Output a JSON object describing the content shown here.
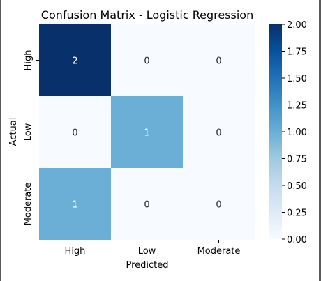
{
  "chart_data": {
    "type": "heatmap",
    "title": "Confusion Matrix - Logistic Regression",
    "xlabel": "Predicted",
    "ylabel": "Actual",
    "x_categories": [
      "High",
      "Low",
      "Moderate"
    ],
    "y_categories": [
      "High",
      "Low",
      "Moderate"
    ],
    "values": [
      [
        2,
        0,
        0
      ],
      [
        0,
        1,
        0
      ],
      [
        1,
        0,
        0
      ]
    ],
    "colormap": "Blues",
    "vmin": 0,
    "vmax": 2,
    "colorbar_ticks": [
      "0.00",
      "0.25",
      "0.50",
      "0.75",
      "1.00",
      "1.25",
      "1.50",
      "1.75",
      "2.00"
    ],
    "colors": {
      "low": "#f7fbff",
      "mid": "#6baed6",
      "high": "#08306b"
    }
  }
}
